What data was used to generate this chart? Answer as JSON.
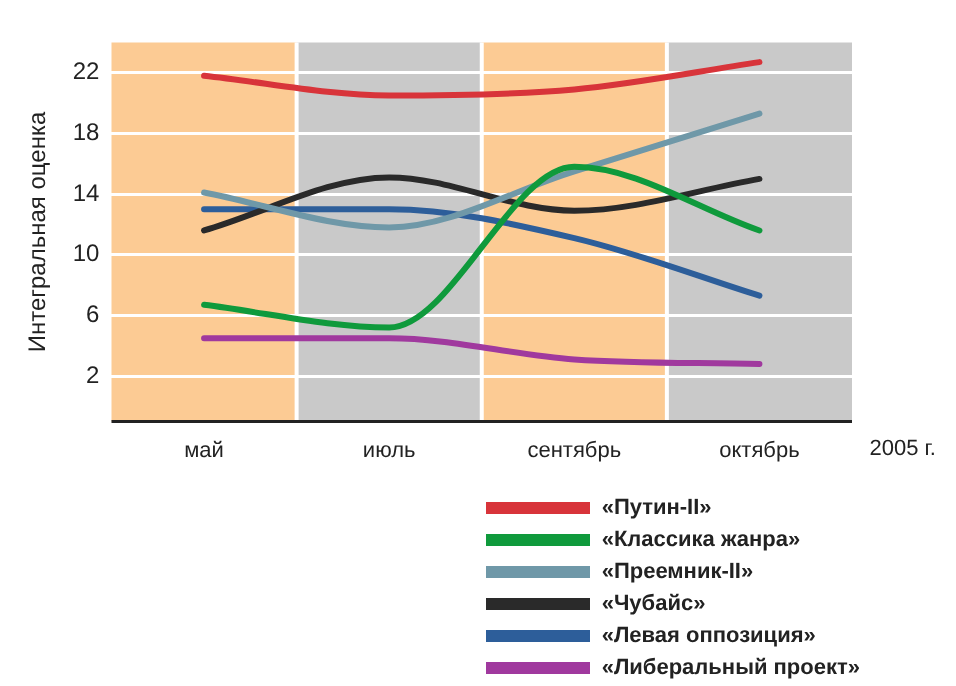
{
  "chart_data": {
    "type": "line",
    "ylabel": "Интегральная оценка",
    "xlabel": "2005 г.",
    "categories": [
      "май",
      "июль",
      "сентябрь",
      "октябрь"
    ],
    "series": [
      {
        "name": "«Путин-II»",
        "color": "#d8343a",
        "values": [
          21.8,
          20.5,
          20.9,
          22.7
        ]
      },
      {
        "name": "«Классика жанра»",
        "color": "#0f9a3c",
        "values": [
          6.7,
          5.2,
          15.8,
          11.6
        ]
      },
      {
        "name": "«Преемник-II»",
        "color": "#6f98a8",
        "values": [
          14.1,
          11.8,
          15.5,
          19.3
        ]
      },
      {
        "name": "«Чубайс»",
        "color": "#2a2a2a",
        "values": [
          11.6,
          15.1,
          12.9,
          15.0
        ]
      },
      {
        "name": "«Левая оппозиция»",
        "color": "#2d5e9a",
        "values": [
          13.0,
          13.0,
          11.1,
          7.3
        ]
      },
      {
        "name": "«Либеральный проект»",
        "color": "#a0399e",
        "values": [
          4.5,
          4.5,
          3.1,
          2.8
        ]
      }
    ],
    "ylim": [
      -1,
      24
    ],
    "yticks": [
      2,
      6,
      10,
      14,
      18,
      22
    ],
    "grid": "y",
    "legend": "bottom right",
    "marker": "none",
    "line_style": "solid",
    "bands": [
      {
        "axis": "x",
        "from": "май",
        "to": "май",
        "color": "#fccb94"
      },
      {
        "axis": "x",
        "from": "июль",
        "to": "июль",
        "color": "#c9c9c9"
      },
      {
        "axis": "x",
        "from": "сентябрь",
        "to": "сентябрь",
        "color": "#fccb94"
      },
      {
        "axis": "x",
        "from": "октябрь",
        "to": "октябрь",
        "color": "#c9c9c9"
      }
    ]
  }
}
